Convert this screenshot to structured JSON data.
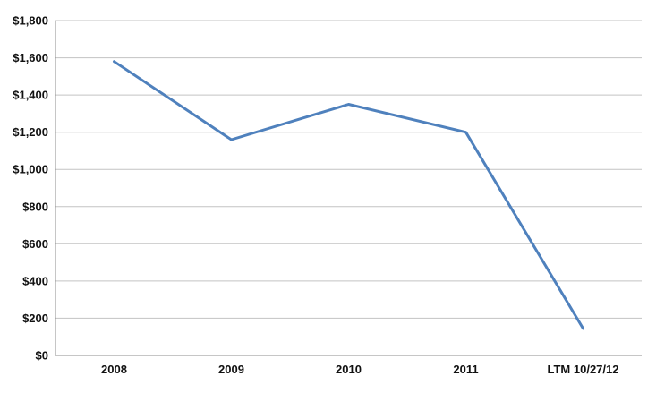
{
  "chart_data": {
    "type": "line",
    "title": "",
    "xlabel": "",
    "ylabel": "",
    "categories": [
      "2008",
      "2009",
      "2010",
      "2011",
      "LTM 10/27/12"
    ],
    "series": [
      {
        "name": "value",
        "values": [
          1580,
          1160,
          1350,
          1200,
          145
        ]
      }
    ],
    "ylim": [
      0,
      1800
    ],
    "y_tick_step": 200,
    "y_tick_labels": [
      "$0",
      "$200",
      "$400",
      "$600",
      "$800",
      "$1,000",
      "$1,200",
      "$1,400",
      "$1,600",
      "$1,800"
    ],
    "grid": true,
    "legend": "none",
    "colors": {
      "line": "#4F81BD",
      "gridline": "#C3C3C3",
      "axis": "#8C8C8C",
      "label": "#111111",
      "background": "#FFFFFF"
    },
    "line_width": 3
  }
}
